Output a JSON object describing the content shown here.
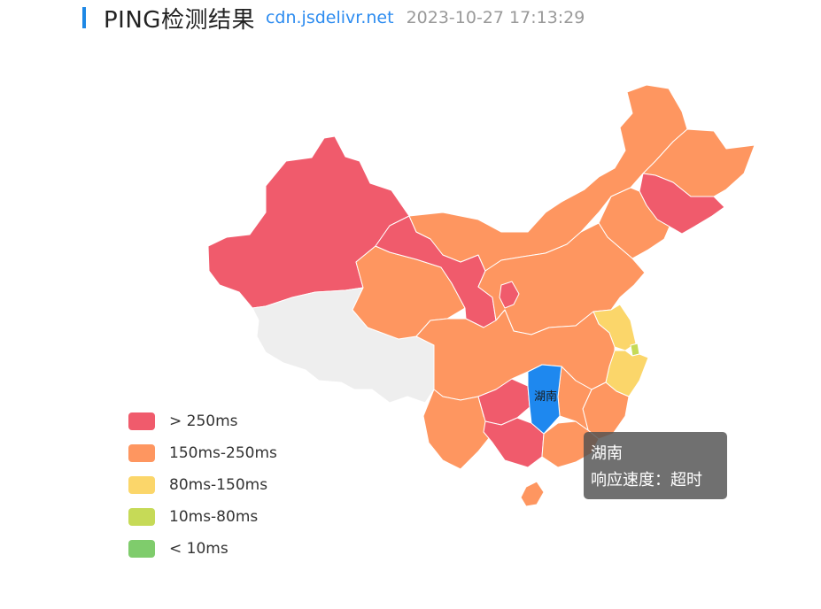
{
  "header": {
    "title": "PING检测结果",
    "host": "cdn.jsdelivr.net",
    "time": "2023-10-27 17:13:29"
  },
  "map": {
    "highlight_label": "湖南",
    "colors": {
      "gt250": "#f05b6c",
      "150to250": "#fe9660",
      "80to150": "#fbd66a",
      "10to80": "#c6da57",
      "lt10": "#7fcc6c",
      "nodata": "#eeeeee",
      "highlight": "#1e88ef"
    }
  },
  "legend": {
    "items": [
      {
        "label": "> 250ms",
        "color": "#f05b6c"
      },
      {
        "label": "150ms-250ms",
        "color": "#fe9660"
      },
      {
        "label": "80ms-150ms",
        "color": "#fbd66a"
      },
      {
        "label": "10ms-80ms",
        "color": "#c6da57"
      },
      {
        "label": "< 10ms",
        "color": "#7fcc6c"
      }
    ]
  },
  "tooltip": {
    "region": "湖南",
    "speed_label": "响应速度：",
    "speed_value": "超时"
  }
}
